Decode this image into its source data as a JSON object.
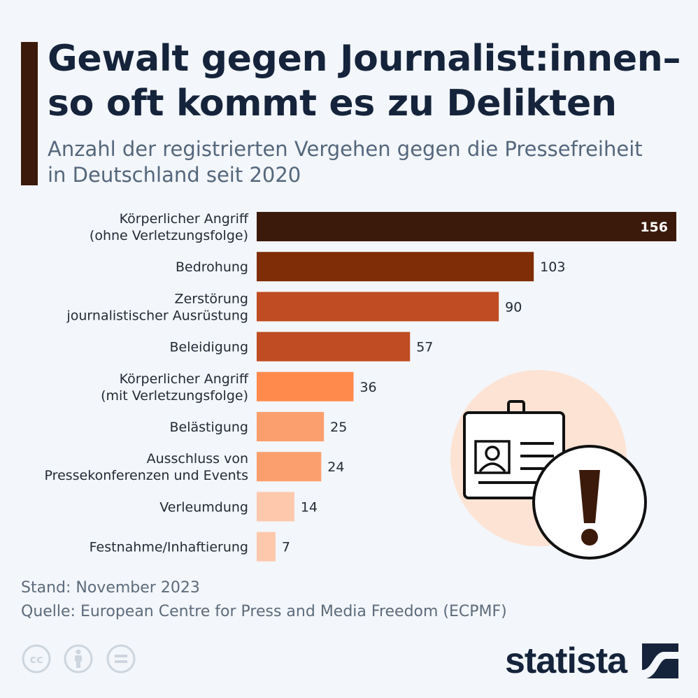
{
  "header": {
    "title": "Gewalt gegen Journalist:innen–\nso oft kommt es zu Delikten",
    "subtitle": "Anzahl der registrierten Vergehen gegen die Pressefreiheit\nin Deutschland seit 2020"
  },
  "chart_data": {
    "type": "bar",
    "orientation": "horizontal",
    "categories": [
      "Körperlicher Angriff\n(ohne Verletzungsfolge)",
      "Bedrohung",
      "Zerstörung\njournalistischer Ausrüstung",
      "Beleidigung",
      "Körperlicher Angriff\n(mit Verletzungsfolge)",
      "Belästigung",
      "Ausschluss von\nPressekonferenzen und Events",
      "Verleumdung",
      "Festnahme/Inhaftierung"
    ],
    "values": [
      156,
      103,
      90,
      57,
      36,
      25,
      24,
      14,
      7
    ],
    "colors": [
      "#3b1a0b",
      "#7f2d07",
      "#bf4c22",
      "#bf4c22",
      "#ff8a4c",
      "#fc9f6e",
      "#fc9f6e",
      "#fec8ad",
      "#fec8ad"
    ],
    "title": "Gewalt gegen Journalist:innen– so oft kommt es zu Delikten",
    "xlim": [
      0,
      156
    ],
    "grid": false,
    "legend": "none"
  },
  "footer": {
    "stand": "Stand: November 2023",
    "source": "Quelle: European Centre for Press and Media Freedom (ECPMF)"
  },
  "brand": {
    "name": "statista"
  },
  "icons": {
    "cc": "cc-icon",
    "by": "attribution-icon",
    "nd": "no-derivatives-icon",
    "illustration": "press-badge-warning-icon"
  }
}
